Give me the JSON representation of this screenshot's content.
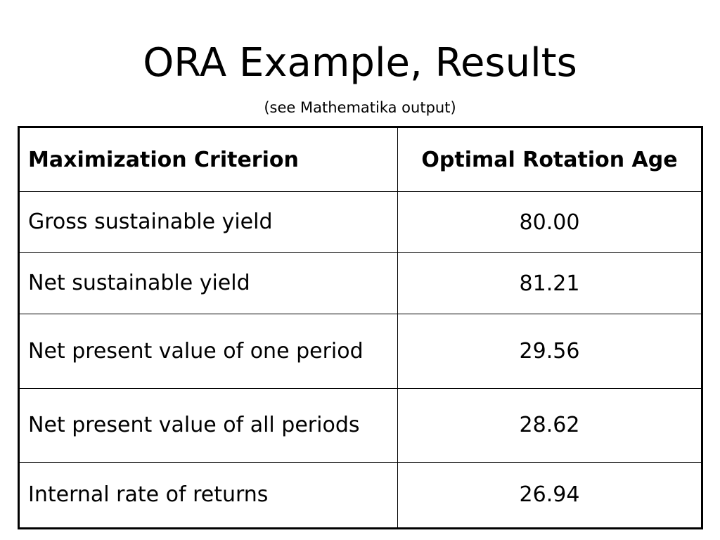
{
  "header": {
    "title": "ORA Example, Results",
    "subtitle": "(see Mathematika output)"
  },
  "table": {
    "columns": [
      "Maximization Criterion",
      "Optimal Rotation Age"
    ],
    "rows": [
      [
        "Gross sustainable yield",
        "80.00"
      ],
      [
        "Net sustainable yield",
        "81.21"
      ],
      [
        "Net present value of one period",
        "29.56"
      ],
      [
        "Net present value of all periods",
        "28.62"
      ],
      [
        "Internal rate of returns",
        "26.94"
      ]
    ]
  }
}
